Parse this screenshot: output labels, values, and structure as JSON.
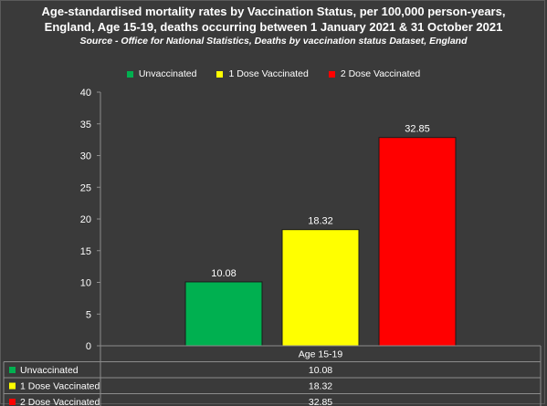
{
  "header": {
    "title_line1": "Age-standardised mortality rates by Vaccination Status, per 100,000 person-years,",
    "title_line2": "England, Age 15-19, deaths occurring between 1 January 2021 & 31 October 2021",
    "source": "Source - Office for National Statistics, Deaths by vaccination status Dataset, England"
  },
  "chart_data": {
    "type": "bar",
    "title": "Age-standardised mortality rates by Vaccination Status, per 100,000 person-years, England, Age 15-19, deaths occurring between 1 January 2021 & 31 October 2021",
    "subtitle": "Source - Office for National Statistics, Deaths by vaccination status Dataset, England",
    "categories": [
      "Age 15-19"
    ],
    "series": [
      {
        "name": "Unvaccinated",
        "color": "#00b050",
        "values": [
          10.08
        ],
        "labels": [
          "10.08"
        ]
      },
      {
        "name": "1 Dose Vaccinated",
        "color": "#ffff00",
        "values": [
          18.32
        ],
        "labels": [
          "18.32"
        ]
      },
      {
        "name": "2 Dose Vaccinated",
        "color": "#ff0000",
        "values": [
          32.85
        ],
        "labels": [
          "32.85"
        ]
      }
    ],
    "ylim": [
      0,
      40
    ],
    "yticks": [
      "0",
      "5",
      "10",
      "15",
      "20",
      "25",
      "30",
      "35",
      "40"
    ],
    "legend": "top",
    "grid": false,
    "data_table": true
  }
}
